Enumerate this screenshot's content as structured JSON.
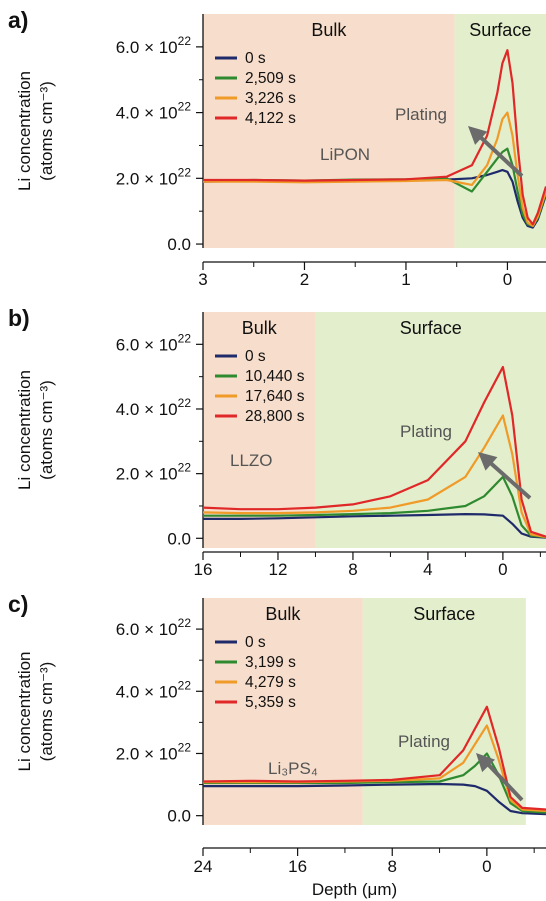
{
  "chart_data": [
    {
      "type": "line",
      "panel": "a)",
      "ylabel": "Li concentration",
      "ylabel_unit": "(atoms cm⁻³)",
      "xlabel": "",
      "x_reversed": true,
      "xlim": [
        3.0,
        -0.38
      ],
      "ylim": [
        -0.12,
        7.0
      ],
      "y_multiplier": "× 10²²",
      "xticks": [
        3,
        2,
        1,
        0
      ],
      "yticks": [
        0.0,
        2.0,
        4.0,
        6.0
      ],
      "y_tick_labels": [
        "0.0",
        "2.0 × 10²²",
        "4.0 × 10²²",
        "6.0 × 10²²"
      ],
      "regions": [
        {
          "label": "Bulk",
          "from": 3.0,
          "to": 0.52,
          "color": "#f7ddcb"
        },
        {
          "label": "Surface",
          "from": 0.52,
          "to": -0.38,
          "color": "#e3eecc"
        }
      ],
      "material_label": "LiPON",
      "annotation": "Plating",
      "series": [
        {
          "name": "0 s",
          "color": "#1f2a6b",
          "x": [
            3.0,
            2.5,
            2.0,
            1.5,
            1.0,
            0.6,
            0.35,
            0.2,
            0.1,
            0.05,
            0.0,
            -0.05,
            -0.1,
            -0.15,
            -0.2,
            -0.25,
            -0.3,
            -0.38
          ],
          "y": [
            1.9,
            1.92,
            1.9,
            1.93,
            1.95,
            1.96,
            2.0,
            2.1,
            2.2,
            2.25,
            2.2,
            1.9,
            1.3,
            0.8,
            0.55,
            0.5,
            0.75,
            1.5
          ]
        },
        {
          "name": "2,509 s",
          "color": "#2f8a2f",
          "x": [
            3.0,
            2.5,
            2.0,
            1.5,
            1.0,
            0.6,
            0.35,
            0.2,
            0.1,
            0.05,
            0.0,
            -0.05,
            -0.1,
            -0.15,
            -0.2,
            -0.25,
            -0.3,
            -0.38
          ],
          "y": [
            1.92,
            1.95,
            1.93,
            1.96,
            1.97,
            2.0,
            1.6,
            2.2,
            2.6,
            2.8,
            2.9,
            2.4,
            1.6,
            0.9,
            0.6,
            0.55,
            0.8,
            1.55
          ]
        },
        {
          "name": "3,226 s",
          "color": "#f09a28",
          "x": [
            3.0,
            2.5,
            2.0,
            1.5,
            1.0,
            0.6,
            0.35,
            0.2,
            0.1,
            0.05,
            0.0,
            -0.05,
            -0.1,
            -0.15,
            -0.2,
            -0.25,
            -0.3,
            -0.38
          ],
          "y": [
            1.9,
            1.9,
            1.88,
            1.9,
            1.92,
            1.95,
            1.8,
            2.4,
            3.2,
            3.8,
            4.0,
            3.3,
            2.1,
            1.1,
            0.65,
            0.55,
            0.85,
            1.6
          ]
        },
        {
          "name": "4,122 s",
          "color": "#e02828",
          "x": [
            3.0,
            2.5,
            2.0,
            1.5,
            1.0,
            0.6,
            0.35,
            0.2,
            0.1,
            0.05,
            0.0,
            -0.05,
            -0.1,
            -0.15,
            -0.2,
            -0.25,
            -0.3,
            -0.38
          ],
          "y": [
            1.95,
            1.95,
            1.93,
            1.95,
            1.97,
            2.05,
            2.4,
            3.3,
            4.6,
            5.5,
            5.9,
            4.9,
            3.0,
            1.5,
            0.8,
            0.6,
            0.95,
            1.75
          ]
        }
      ]
    },
    {
      "type": "line",
      "panel": "b)",
      "ylabel": "Li concentration",
      "ylabel_unit": "(atoms cm⁻³)",
      "xlabel": "",
      "x_reversed": true,
      "xlim": [
        16.0,
        -2.3
      ],
      "ylim": [
        -0.3,
        7.0
      ],
      "y_multiplier": "× 10²²",
      "xticks": [
        16,
        12,
        8,
        4,
        0
      ],
      "yticks": [
        0.0,
        2.0,
        4.0,
        6.0
      ],
      "y_tick_labels": [
        "0.0",
        "2.0 × 10²²",
        "4.0 × 10²²",
        "6.0 × 10²²"
      ],
      "regions": [
        {
          "label": "Bulk",
          "from": 16.0,
          "to": 10.0,
          "color": "#f7ddcb"
        },
        {
          "label": "Surface",
          "from": 10.0,
          "to": -2.3,
          "color": "#e3eecc"
        }
      ],
      "material_label": "LLZO",
      "annotation": "Plating",
      "series": [
        {
          "name": "0 s",
          "color": "#1f2a6b",
          "x": [
            16,
            14,
            12,
            10,
            8,
            6,
            4,
            2,
            1,
            0,
            -0.5,
            -1.0,
            -1.5,
            -2.3
          ],
          "y": [
            0.6,
            0.6,
            0.62,
            0.65,
            0.68,
            0.7,
            0.72,
            0.75,
            0.74,
            0.7,
            0.45,
            0.15,
            0.05,
            0.02
          ]
        },
        {
          "name": "10,440 s",
          "color": "#2f8a2f",
          "x": [
            16,
            14,
            12,
            10,
            8,
            6,
            4,
            2,
            1,
            0,
            -0.5,
            -1.0,
            -1.5,
            -2.3
          ],
          "y": [
            0.7,
            0.7,
            0.7,
            0.72,
            0.75,
            0.78,
            0.85,
            1.0,
            1.3,
            1.9,
            1.3,
            0.4,
            0.08,
            0.03
          ]
        },
        {
          "name": "17,640 s",
          "color": "#f09a28",
          "x": [
            16,
            14,
            12,
            10,
            8,
            6,
            4,
            2,
            1,
            0,
            -0.5,
            -1.0,
            -1.5,
            -2.3
          ],
          "y": [
            0.8,
            0.78,
            0.78,
            0.8,
            0.85,
            0.95,
            1.2,
            1.9,
            2.8,
            3.8,
            2.6,
            0.8,
            0.12,
            0.04
          ]
        },
        {
          "name": "28,800 s",
          "color": "#e02828",
          "x": [
            16,
            14,
            12,
            10,
            8,
            6,
            4,
            2,
            1,
            0,
            -0.5,
            -1.0,
            -1.5,
            -2.3
          ],
          "y": [
            0.95,
            0.9,
            0.9,
            0.95,
            1.05,
            1.3,
            1.8,
            3.0,
            4.2,
            5.3,
            3.8,
            1.2,
            0.2,
            0.05
          ]
        }
      ]
    },
    {
      "type": "line",
      "panel": "c)",
      "ylabel": "Li concentration",
      "ylabel_unit": "(atoms cm⁻³)",
      "xlabel": "Depth (μm)",
      "x_reversed": true,
      "xlim": [
        24.0,
        -5.0
      ],
      "ylim": [
        -0.3,
        7.0
      ],
      "y_multiplier": "× 10²²",
      "xticks": [
        24,
        16,
        8,
        0
      ],
      "yticks": [
        0.0,
        2.0,
        4.0,
        6.0
      ],
      "y_tick_labels": [
        "0.0",
        "2.0 × 10²²",
        "4.0 × 10²²",
        "6.0 × 10²²"
      ],
      "regions": [
        {
          "label": "Bulk",
          "from": 24.0,
          "to": 10.5,
          "color": "#f7ddcb"
        },
        {
          "label": "Surface",
          "from": 10.5,
          "to": -3.3,
          "color": "#e3eecc"
        }
      ],
      "material_label": "Li₃PS₄",
      "annotation": "Plating",
      "series": [
        {
          "name": "0 s",
          "color": "#1f2a6b",
          "x": [
            24,
            20,
            16,
            12,
            8,
            4,
            2,
            1,
            0,
            -1,
            -2,
            -3,
            -5
          ],
          "y": [
            0.95,
            0.95,
            0.95,
            0.97,
            1.0,
            1.02,
            1.0,
            0.95,
            0.8,
            0.45,
            0.15,
            0.08,
            0.05
          ]
        },
        {
          "name": "3,199 s",
          "color": "#2f8a2f",
          "x": [
            24,
            20,
            16,
            12,
            8,
            4,
            2,
            1,
            0,
            -1,
            -2,
            -3,
            -5
          ],
          "y": [
            1.05,
            1.05,
            1.05,
            1.05,
            1.08,
            1.1,
            1.3,
            1.6,
            2.0,
            1.3,
            0.4,
            0.15,
            0.1
          ]
        },
        {
          "name": "4,279 s",
          "color": "#f09a28",
          "x": [
            24,
            20,
            16,
            12,
            8,
            4,
            2,
            1,
            0,
            -1,
            -2,
            -3,
            -5
          ],
          "y": [
            1.08,
            1.08,
            1.08,
            1.1,
            1.12,
            1.2,
            1.7,
            2.3,
            2.9,
            1.8,
            0.5,
            0.2,
            0.15
          ]
        },
        {
          "name": "5,359 s",
          "color": "#e02828",
          "x": [
            24,
            20,
            16,
            12,
            8,
            4,
            2,
            1,
            0,
            -1,
            -2,
            -3,
            -5
          ],
          "y": [
            1.1,
            1.12,
            1.1,
            1.12,
            1.15,
            1.3,
            2.1,
            2.8,
            3.5,
            2.2,
            0.6,
            0.25,
            0.2
          ]
        }
      ]
    }
  ]
}
